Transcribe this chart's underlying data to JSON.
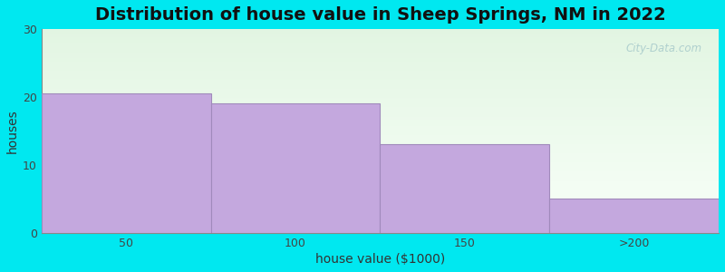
{
  "title": "Distribution of house value in Sheep Springs, NM in 2022",
  "xlabel": "house value ($1000)",
  "ylabel": "houses",
  "categories": [
    "50",
    "100",
    "150",
    ">200"
  ],
  "values": [
    20.5,
    19.0,
    13.0,
    5.0
  ],
  "bar_color": "#c4a8de",
  "bar_edgecolor": "#a08abb",
  "ylim": [
    0,
    30
  ],
  "xlim": [
    0,
    4
  ],
  "yticks": [
    0,
    10,
    20,
    30
  ],
  "background_outer": "#00e8f0",
  "bg_top_color": "#e2f5e2",
  "bg_bottom_color": "#f8fff8",
  "title_fontsize": 14,
  "axis_label_fontsize": 10,
  "tick_fontsize": 9,
  "watermark": "City-Data.com"
}
